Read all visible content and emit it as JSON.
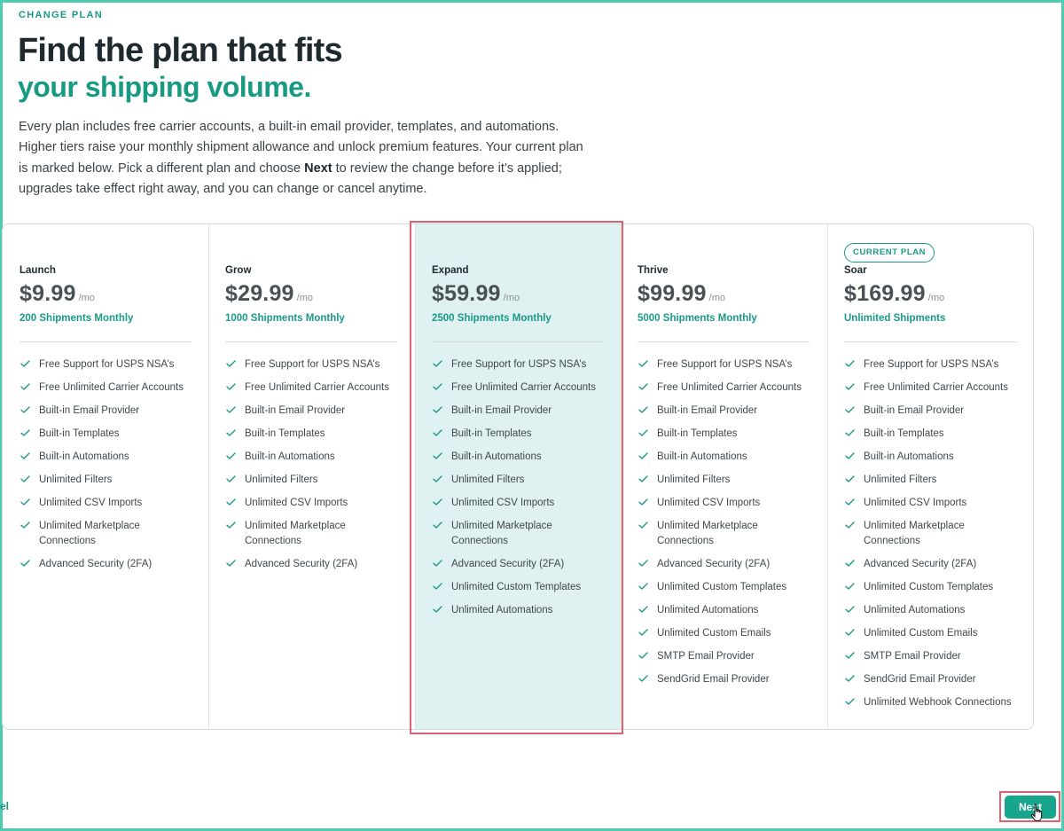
{
  "header": {
    "eyebrow": "CHANGE PLAN",
    "title_line1": "Find the plan that fits",
    "title_line2": "your shipping volume.",
    "intro_before": "Every plan includes free carrier accounts, a built-in email provider, templates, and automations. Higher tiers raise your monthly shipment allowance and unlock premium features. Your current plan is marked below. Pick a different plan and choose ",
    "intro_bold": "Next",
    "intro_after": " to review the change before it’s applied; upgrades take effect right away, and you can change or cancel anytime."
  },
  "colors": {
    "accent": "#17a58b",
    "selected_bg": "#dff1f0",
    "highlight_outline": "#d9636e"
  },
  "plans": [
    {
      "name": "Launch",
      "price": "$9.99",
      "period": "/mo",
      "shipments": "200 Shipments Monthly",
      "badge": "",
      "selected": false,
      "features": [
        "Free Support for USPS NSA’s",
        "Free Unlimited Carrier Accounts",
        "Built-in Email Provider",
        "Built-in Templates",
        "Built-in Automations",
        "Unlimited Filters",
        "Unlimited CSV Imports",
        "Unlimited Marketplace Connections",
        "Advanced Security (2FA)"
      ]
    },
    {
      "name": "Grow",
      "price": "$29.99",
      "period": "/mo",
      "shipments": "1000 Shipments Monthly",
      "badge": "",
      "selected": false,
      "features": [
        "Free Support for USPS NSA’s",
        "Free Unlimited Carrier Accounts",
        "Built-in Email Provider",
        "Built-in Templates",
        "Built-in Automations",
        "Unlimited Filters",
        "Unlimited CSV Imports",
        "Unlimited Marketplace Connections",
        "Advanced Security (2FA)"
      ]
    },
    {
      "name": "Expand",
      "price": "$59.99",
      "period": "/mo",
      "shipments": "2500 Shipments Monthly",
      "badge": "",
      "selected": true,
      "features": [
        "Free Support for USPS NSA’s",
        "Free Unlimited Carrier Accounts",
        "Built-in Email Provider",
        "Built-in Templates",
        "Built-in Automations",
        "Unlimited Filters",
        "Unlimited CSV Imports",
        "Unlimited Marketplace Connections",
        "Advanced Security (2FA)",
        "Unlimited Custom Templates",
        "Unlimited Automations"
      ]
    },
    {
      "name": "Thrive",
      "price": "$99.99",
      "period": "/mo",
      "shipments": "5000 Shipments Monthly",
      "badge": "",
      "selected": false,
      "features": [
        "Free Support for USPS NSA’s",
        "Free Unlimited Carrier Accounts",
        "Built-in Email Provider",
        "Built-in Templates",
        "Built-in Automations",
        "Unlimited Filters",
        "Unlimited CSV Imports",
        "Unlimited Marketplace Connections",
        "Advanced Security (2FA)",
        "Unlimited Custom Templates",
        "Unlimited Automations",
        "Unlimited Custom Emails",
        "SMTP Email Provider",
        "SendGrid Email Provider"
      ]
    },
    {
      "name": "Soar",
      "price": "$169.99",
      "period": "/mo",
      "shipments": "Unlimited Shipments",
      "badge": "CURRENT PLAN",
      "selected": false,
      "features": [
        "Free Support for USPS NSA’s",
        "Free Unlimited Carrier Accounts",
        "Built-in Email Provider",
        "Built-in Templates",
        "Built-in Automations",
        "Unlimited Filters",
        "Unlimited CSV Imports",
        "Unlimited Marketplace Connections",
        "Advanced Security (2FA)",
        "Unlimited Custom Templates",
        "Unlimited Automations",
        "Unlimited Custom Emails",
        "SMTP Email Provider",
        "SendGrid Email Provider",
        "Unlimited Webhook Connections"
      ]
    }
  ],
  "footer": {
    "cancel_label": "el",
    "next_label": "Next"
  }
}
